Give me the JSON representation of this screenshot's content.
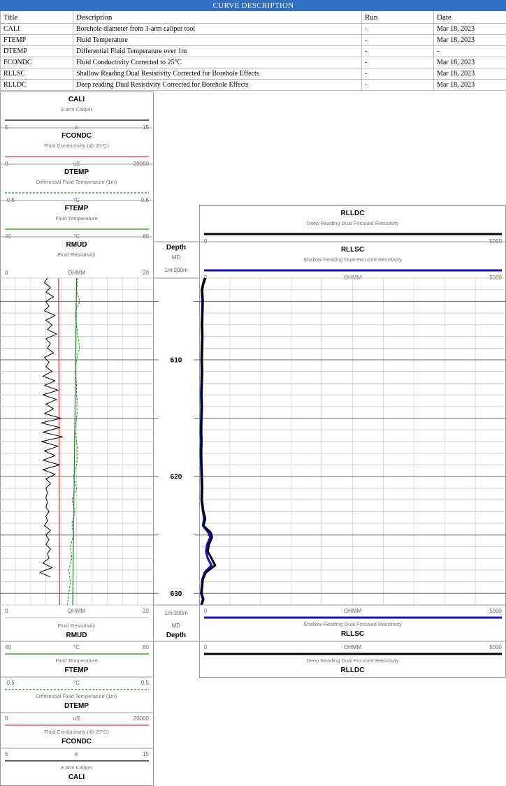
{
  "curve_description": {
    "banner": "CURVE DESCRIPTION",
    "columns": [
      "Title",
      "Description",
      "Run",
      "Date"
    ],
    "rows": [
      [
        "CALI",
        "Borehole diameter from 3-arm caliper tool",
        "-",
        "Mar 18, 2023"
      ],
      [
        "FTEMP",
        "Fluid Temperature",
        "-",
        "Mar 18, 2023"
      ],
      [
        "DTEMP",
        "Differential Fluid Temperature over 1m",
        "-",
        "-"
      ],
      [
        "FCONDC",
        "Fluid Conductivity Corrected to 25°C",
        "-",
        "Mar 18, 2023"
      ],
      [
        "RLLSC",
        "Shallow Reading Dual Resistivity Corrected for Borehole Effects",
        "-",
        "Mar 18, 2023"
      ],
      [
        "RLLDC",
        "Deep reading Dual Resistivity Corrected for Borehole Effects",
        "-",
        "Mar 18, 2023"
      ]
    ]
  },
  "colors": {
    "CALI": "#000000",
    "FCONDC": "#e03030",
    "DTEMP": "#1a8a1a",
    "FTEMP": "#1a8a1a",
    "RMUD": "#000000",
    "RLLSC": "#1010cc",
    "RLLDC": "#000000",
    "banner": "#2e6fc4"
  },
  "track1_headers": [
    {
      "mnemonic": "CALI",
      "subtitle": "3-arm Caliper",
      "min": "5",
      "unit": "in",
      "max": "15",
      "style": "solid"
    },
    {
      "mnemonic": "FCONDC",
      "subtitle": "Fluid Conductivity (@ 25°C)",
      "min": "0",
      "unit": "uS",
      "max": "20000",
      "style": "solid"
    },
    {
      "mnemonic": "DTEMP",
      "subtitle": "Differential Fluid Temperature (1m)",
      "min": "-0.5",
      "unit": "°C",
      "max": "0.5",
      "style": "dashed"
    },
    {
      "mnemonic": "FTEMP",
      "subtitle": "Fluid Temperature",
      "min": "40",
      "unit": "°C",
      "max": "80",
      "style": "solid"
    },
    {
      "mnemonic": "RMUD",
      "subtitle": "Fluid Resisitivity",
      "min": "0",
      "unit": "OHMM",
      "max": "20",
      "style": "none"
    }
  ],
  "track1_footer_rmud": {
    "mnemonic": "RMUD",
    "subtitle": "Fluid Resisitivity",
    "min": "0",
    "unit": "OHMM",
    "max": "20"
  },
  "track1_footers": [
    {
      "mnemonic": "FTEMP",
      "subtitle": "Fluid Temperature",
      "min": "40",
      "unit": "°C",
      "max": "80",
      "style": "solid"
    },
    {
      "mnemonic": "DTEMP",
      "subtitle": "Differential Fluid Temperature (1m)",
      "min": "-0.5",
      "unit": "°C",
      "max": "0.5",
      "style": "dashed"
    },
    {
      "mnemonic": "FCONDC",
      "subtitle": "Fluid Conductivity (@ 25°C)",
      "min": "0",
      "unit": "uS",
      "max": "20000",
      "style": "solid"
    },
    {
      "mnemonic": "CALI",
      "subtitle": "3-arm Caliper",
      "min": "5",
      "unit": "in",
      "max": "15",
      "style": "solid"
    }
  ],
  "depth_track": {
    "title": "Depth",
    "type": "MD",
    "scale": "1m:200m",
    "ticks": [
      "610",
      "620",
      "630"
    ]
  },
  "track3_headers": [
    {
      "mnemonic": "RLLDC",
      "subtitle": "Deep Reading Dual Focused Resistivity",
      "min": "0",
      "unit": "",
      "max": "5000"
    },
    {
      "mnemonic": "RLLSC",
      "subtitle": "Shallow Reading Dual Focused Resistivity",
      "min": "0",
      "unit": "OHMM",
      "max": "5000"
    }
  ],
  "track3_footers": [
    {
      "mnemonic": "RLLSC",
      "subtitle": "Shallow Reading Dual Focused Resistivity",
      "min": "0",
      "unit": "OHMM",
      "max": "5000"
    },
    {
      "mnemonic": "RLLDC",
      "subtitle": "Deep Reading Dual Focused Resistivity",
      "min": "0",
      "unit": "OHMM",
      "max": "5000"
    }
  ],
  "chart_data": {
    "type": "line",
    "y_axis": {
      "label": "Depth",
      "unit": "m",
      "range": [
        603.0,
        631.0
      ],
      "inverted": true,
      "ticks": [
        610,
        620,
        630
      ]
    },
    "track1": {
      "scales": {
        "CALI": [
          5,
          15
        ],
        "FCONDC": [
          0,
          20000
        ],
        "DTEMP": [
          -0.5,
          0.5
        ],
        "FTEMP": [
          40,
          80
        ],
        "RMUD": [
          0,
          20
        ]
      },
      "grid_divisions": 10,
      "CALI": {
        "depth": [
          603.0,
          603.4,
          603.8,
          604.2,
          604.6,
          605.0,
          605.4,
          605.8,
          606.2,
          606.6,
          607.0,
          607.4,
          607.8,
          608.2,
          608.6,
          609.0,
          609.4,
          609.8,
          610.2,
          610.6,
          611.0,
          611.4,
          611.8,
          612.2,
          612.6,
          613.0,
          613.4,
          613.8,
          614.2,
          614.6,
          615.0,
          615.4,
          615.8,
          616.2,
          616.6,
          617.0,
          617.4,
          617.8,
          618.2,
          618.6,
          619.0,
          619.4,
          619.8,
          620.2,
          620.6,
          621.0,
          621.4,
          621.8,
          622.2,
          622.6,
          623.0,
          623.4,
          623.8,
          624.2,
          624.6,
          625.0,
          625.4,
          625.8,
          626.2,
          626.6,
          627.0,
          627.4,
          627.8,
          628.2,
          628.6
        ],
        "values": [
          8.1,
          7.9,
          8.3,
          8.0,
          8.5,
          8.0,
          8.2,
          7.9,
          8.6,
          8.0,
          8.4,
          8.1,
          8.7,
          8.0,
          8.3,
          8.1,
          8.5,
          7.9,
          8.2,
          8.0,
          8.4,
          7.8,
          8.6,
          7.9,
          8.8,
          7.8,
          8.7,
          8.0,
          8.5,
          7.9,
          9.0,
          7.7,
          8.9,
          7.8,
          9.1,
          7.7,
          8.8,
          7.9,
          8.6,
          7.8,
          8.9,
          7.8,
          8.6,
          8.0,
          8.3,
          8.0,
          8.1,
          8.0,
          8.1,
          8.0,
          8.2,
          8.0,
          8.1,
          7.9,
          8.3,
          8.0,
          8.2,
          8.0,
          8.3,
          8.1,
          8.2,
          7.8,
          8.4,
          7.6,
          8.3
        ]
      },
      "FCONDC": {
        "depth": [
          603.0,
          631.0
        ],
        "values": [
          7650,
          7800
        ]
      },
      "FTEMP": {
        "depth": [
          603.0,
          631.0
        ],
        "values": [
          60.0,
          59.0
        ]
      },
      "DTEMP": {
        "depth": [
          603.0,
          604.0,
          605.0,
          606.0,
          607.0,
          608.0,
          609.0,
          610.0,
          611.0,
          612.0,
          613.0,
          614.0,
          615.0,
          616.0,
          617.0,
          618.0,
          619.0,
          620.0,
          621.0,
          622.0,
          623.0,
          624.0,
          625.0,
          626.0,
          627.0,
          628.0,
          629.0,
          630.0,
          631.0
        ],
        "values": [
          0.01,
          0.0,
          0.02,
          -0.01,
          0.0,
          0.01,
          0.02,
          0.0,
          -0.01,
          0.0,
          0.0,
          0.01,
          0.0,
          -0.01,
          0.0,
          0.01,
          0.0,
          -0.02,
          0.0,
          -0.03,
          -0.01,
          -0.03,
          -0.02,
          -0.04,
          -0.03,
          -0.05,
          -0.04,
          -0.05,
          -0.06
        ]
      }
    },
    "track3": {
      "scale": [
        0,
        5000
      ],
      "grid_divisions": 10,
      "RLLSC": {
        "depth": [
          603.0,
          603.5,
          604.0,
          605.0,
          606.0,
          607.0,
          608.0,
          609.0,
          610.0,
          611.0,
          612.0,
          613.0,
          614.0,
          615.0,
          616.0,
          617.0,
          618.0,
          619.0,
          620.0,
          621.0,
          622.0,
          623.0,
          623.6,
          624.2,
          624.8,
          625.2,
          625.8,
          626.4,
          627.0,
          627.6,
          628.2,
          628.8,
          629.4,
          630.0,
          630.5,
          631.0
        ],
        "values": [
          90,
          60,
          40,
          50,
          45,
          40,
          45,
          40,
          35,
          40,
          35,
          30,
          35,
          30,
          25,
          30,
          25,
          30,
          35,
          40,
          35,
          60,
          80,
          60,
          150,
          180,
          130,
          110,
          140,
          200,
          90,
          50,
          40,
          30,
          60,
          30
        ]
      },
      "RLLDC": {
        "depth": [
          603.0,
          603.5,
          604.0,
          605.0,
          606.0,
          607.0,
          608.0,
          609.0,
          610.0,
          611.0,
          612.0,
          613.0,
          614.0,
          615.0,
          616.0,
          617.0,
          618.0,
          619.0,
          620.0,
          621.0,
          622.0,
          623.0,
          623.6,
          624.2,
          624.8,
          625.2,
          625.8,
          626.4,
          627.0,
          627.6,
          628.2,
          628.8,
          629.4,
          630.0,
          630.5,
          631.0
        ],
        "values": [
          100,
          70,
          50,
          60,
          55,
          50,
          55,
          50,
          45,
          50,
          45,
          40,
          45,
          40,
          35,
          40,
          35,
          40,
          45,
          50,
          45,
          70,
          100,
          70,
          190,
          210,
          160,
          140,
          200,
          260,
          110,
          60,
          50,
          40,
          70,
          40
        ]
      }
    }
  }
}
